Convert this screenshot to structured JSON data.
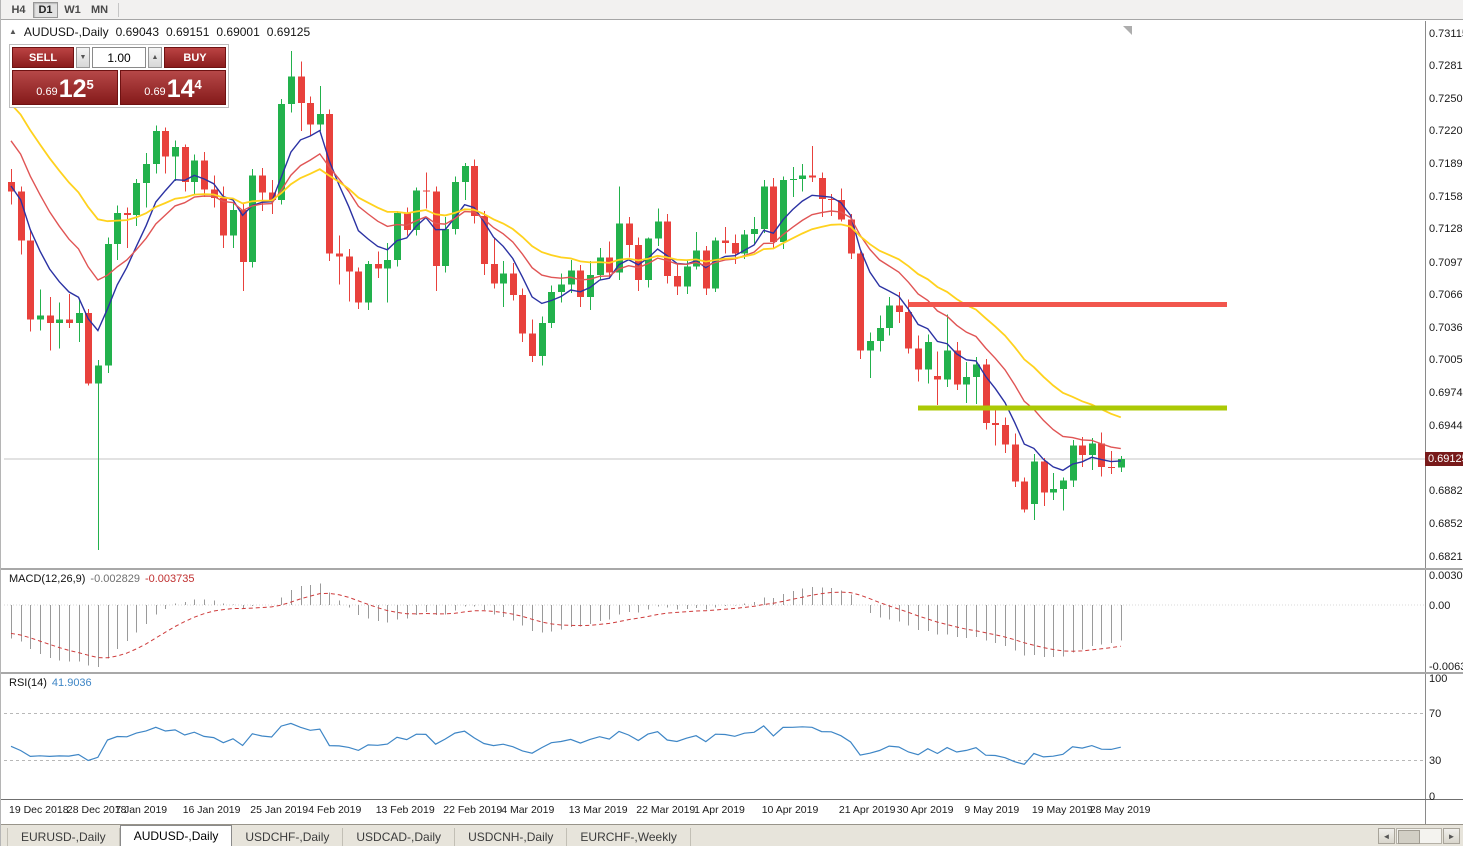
{
  "toolbar": {
    "timeframes": [
      {
        "label": "H4",
        "active": false
      },
      {
        "label": "D1",
        "active": true
      },
      {
        "label": "W1",
        "active": false
      },
      {
        "label": "MN",
        "active": false
      }
    ]
  },
  "icons": {
    "collapse_triangle": "▲",
    "spin_down": "▼",
    "spin_up": "▲",
    "tab_scroll_left": "◄",
    "tab_scroll_right": "►"
  },
  "info_line": {
    "symbol": "AUDUSD-,Daily",
    "open": "0.69043",
    "high": "0.69151",
    "low": "0.69001",
    "close": "0.69125"
  },
  "one_click": {
    "sell_label": "SELL",
    "buy_label": "BUY",
    "volume": "1.00",
    "bid": {
      "prefix": "0.69",
      "big": "12",
      "sup": "5"
    },
    "ask": {
      "prefix": "0.69",
      "big": "14",
      "sup": "4"
    }
  },
  "price_axis": {
    "ticks": [
      "0.73115",
      "0.72810",
      "0.72505",
      "0.72200",
      "0.71890",
      "0.71585",
      "0.71280",
      "0.70970",
      "0.70665",
      "0.70360",
      "0.70055",
      "0.69745",
      "0.69440",
      "0.68825",
      "0.68520",
      "0.68210"
    ],
    "current_price": "0.69125"
  },
  "time_axis": {
    "labels": [
      {
        "text": "19 Dec 2018",
        "i": 0
      },
      {
        "text": "28 Dec 2018",
        "i": 6
      },
      {
        "text": "7 Jan 2019",
        "i": 11
      },
      {
        "text": "16 Jan 2019",
        "i": 18
      },
      {
        "text": "25 Jan 2019",
        "i": 25
      },
      {
        "text": "4 Feb 2019",
        "i": 31
      },
      {
        "text": "13 Feb 2019",
        "i": 38
      },
      {
        "text": "22 Feb 2019",
        "i": 45
      },
      {
        "text": "4 Mar 2019",
        "i": 51
      },
      {
        "text": "13 Mar 2019",
        "i": 58
      },
      {
        "text": "22 Mar 2019",
        "i": 65
      },
      {
        "text": "1 Apr 2019",
        "i": 71
      },
      {
        "text": "10 Apr 2019",
        "i": 78
      },
      {
        "text": "21 Apr 2019",
        "i": 86
      },
      {
        "text": "30 Apr 2019",
        "i": 92
      },
      {
        "text": "9 May 2019",
        "i": 99
      },
      {
        "text": "19 May 2019",
        "i": 106
      },
      {
        "text": "28 May 2019",
        "i": 112
      }
    ]
  },
  "macd_panel": {
    "name": "MACD(12,26,9)",
    "main_value": "-0.002829",
    "signal_value": "-0.003735",
    "axis": [
      "0.003035",
      "0.00",
      "-0.006311"
    ]
  },
  "rsi_panel": {
    "name": "RSI(14)",
    "value": "41.9036",
    "axis": [
      "100",
      "70",
      "30",
      "0"
    ]
  },
  "tabs": [
    {
      "label": "EURUSD-,Daily",
      "active": false
    },
    {
      "label": "AUDUSD-,Daily",
      "active": true
    },
    {
      "label": "USDCHF-,Daily",
      "active": false
    },
    {
      "label": "USDCAD-,Daily",
      "active": false
    },
    {
      "label": "USDCNH-,Daily",
      "active": false
    },
    {
      "label": "EURCHF-,Weekly",
      "active": false
    }
  ],
  "chart_data": {
    "type": "candlestick",
    "symbol": "AUDUSD-",
    "period": "Daily",
    "price_range": {
      "max": 0.7323,
      "min": 0.6811
    },
    "colors": {
      "up": "#22B14C",
      "down": "#E8413C",
      "ma_fast": "#2B32A3",
      "ma_mid": "#E05555",
      "ma_slow": "#FFD21E",
      "macd_hist": "#9A9A9A",
      "macd_signal": "#CE3C3C",
      "rsi": "#3E86C6",
      "level_red": "#F2564D",
      "level_green": "#ABC905",
      "price_line": "#C4C4C4",
      "price_tag_bg": "#781A1A"
    },
    "moving_averages": [
      {
        "period": 7,
        "seed": 0.717,
        "color_key": "ma_fast",
        "width": 1.4
      },
      {
        "period": 14,
        "seed": 0.7218,
        "color_key": "ma_mid",
        "width": 1.4
      },
      {
        "period": 25,
        "seed": 0.7252,
        "color_key": "ma_slow",
        "width": 1.8
      }
    ],
    "hlines": [
      {
        "price": 0.7057,
        "color_key": "level_red",
        "width": 5,
        "from_i": 93,
        "to_i": 126
      },
      {
        "price": 0.696,
        "color_key": "level_green",
        "width": 5,
        "from_i": 94,
        "to_i": 126
      }
    ],
    "macd": {
      "fast": 12,
      "slow": 26,
      "signal": 9,
      "seed_fast": 0.719,
      "seed_slow": 0.7225,
      "seed_signal": -0.0028,
      "scale": {
        "max": 0.0035,
        "min": -0.0068
      }
    },
    "rsi": {
      "period": 14,
      "seed_gain": 0.0016,
      "seed_loss": 0.0022,
      "levels": [
        70,
        30
      ],
      "scale": {
        "max": 100,
        "min": 0
      }
    },
    "ohlc": [
      [
        0.7172,
        0.7184,
        0.7151,
        0.7163
      ],
      [
        0.7163,
        0.7168,
        0.7104,
        0.7117
      ],
      [
        0.7117,
        0.7128,
        0.7032,
        0.7043
      ],
      [
        0.7043,
        0.7071,
        0.7033,
        0.7047
      ],
      [
        0.7047,
        0.7064,
        0.7014,
        0.704
      ],
      [
        0.704,
        0.7059,
        0.7016,
        0.7043
      ],
      [
        0.7043,
        0.7067,
        0.7035,
        0.704
      ],
      [
        0.704,
        0.7062,
        0.7022,
        0.7049
      ],
      [
        0.7049,
        0.7053,
        0.6981,
        0.6983
      ],
      [
        0.6983,
        0.7005,
        0.6827,
        0.7
      ],
      [
        0.7,
        0.712,
        0.6993,
        0.7114
      ],
      [
        0.7114,
        0.715,
        0.7099,
        0.7143
      ],
      [
        0.7143,
        0.7148,
        0.711,
        0.7141
      ],
      [
        0.7141,
        0.7175,
        0.7131,
        0.7171
      ],
      [
        0.7171,
        0.7199,
        0.7148,
        0.7189
      ],
      [
        0.7189,
        0.7225,
        0.718,
        0.722
      ],
      [
        0.722,
        0.7223,
        0.718,
        0.7196
      ],
      [
        0.7196,
        0.7211,
        0.7173,
        0.7205
      ],
      [
        0.7205,
        0.7207,
        0.7163,
        0.7172
      ],
      [
        0.7172,
        0.7198,
        0.716,
        0.7192
      ],
      [
        0.7192,
        0.72,
        0.7158,
        0.7165
      ],
      [
        0.7165,
        0.7178,
        0.7148,
        0.7157
      ],
      [
        0.7157,
        0.7168,
        0.711,
        0.7122
      ],
      [
        0.7122,
        0.7152,
        0.711,
        0.7146
      ],
      [
        0.7146,
        0.7152,
        0.707,
        0.7097
      ],
      [
        0.7097,
        0.7184,
        0.7092,
        0.7178
      ],
      [
        0.7178,
        0.7185,
        0.7145,
        0.7162
      ],
      [
        0.7162,
        0.7174,
        0.7142,
        0.7155
      ],
      [
        0.7155,
        0.725,
        0.7151,
        0.7245
      ],
      [
        0.7245,
        0.7295,
        0.7237,
        0.7271
      ],
      [
        0.7271,
        0.7285,
        0.722,
        0.7246
      ],
      [
        0.7246,
        0.7252,
        0.7215,
        0.7226
      ],
      [
        0.7226,
        0.7262,
        0.722,
        0.7236
      ],
      [
        0.7236,
        0.724,
        0.7098,
        0.7105
      ],
      [
        0.7105,
        0.7122,
        0.7076,
        0.7102
      ],
      [
        0.7102,
        0.7109,
        0.706,
        0.7088
      ],
      [
        0.7088,
        0.7092,
        0.7053,
        0.7059
      ],
      [
        0.7059,
        0.7098,
        0.7052,
        0.7095
      ],
      [
        0.7095,
        0.7107,
        0.7082,
        0.7091
      ],
      [
        0.7091,
        0.7115,
        0.7059,
        0.7099
      ],
      [
        0.7099,
        0.7145,
        0.7093,
        0.7143
      ],
      [
        0.7143,
        0.7148,
        0.7122,
        0.7127
      ],
      [
        0.7127,
        0.7167,
        0.7122,
        0.7164
      ],
      [
        0.7164,
        0.7181,
        0.7147,
        0.7163
      ],
      [
        0.7163,
        0.7168,
        0.707,
        0.7093
      ],
      [
        0.7093,
        0.7139,
        0.7087,
        0.7128
      ],
      [
        0.7128,
        0.7177,
        0.7123,
        0.7172
      ],
      [
        0.7172,
        0.719,
        0.7155,
        0.7187
      ],
      [
        0.7187,
        0.7193,
        0.7133,
        0.714
      ],
      [
        0.714,
        0.7145,
        0.7085,
        0.7095
      ],
      [
        0.7095,
        0.712,
        0.7072,
        0.7077
      ],
      [
        0.7077,
        0.7098,
        0.7055,
        0.7086
      ],
      [
        0.7086,
        0.7096,
        0.7061,
        0.7066
      ],
      [
        0.7066,
        0.7072,
        0.7022,
        0.703
      ],
      [
        0.703,
        0.7043,
        0.7003,
        0.7009
      ],
      [
        0.7009,
        0.7046,
        0.7,
        0.704
      ],
      [
        0.704,
        0.7075,
        0.7035,
        0.7069
      ],
      [
        0.7069,
        0.7086,
        0.7059,
        0.7076
      ],
      [
        0.7076,
        0.7099,
        0.7068,
        0.7089
      ],
      [
        0.7089,
        0.7094,
        0.7055,
        0.7064
      ],
      [
        0.7064,
        0.7098,
        0.7052,
        0.7085
      ],
      [
        0.7085,
        0.711,
        0.708,
        0.7101
      ],
      [
        0.7101,
        0.7116,
        0.7082,
        0.7087
      ],
      [
        0.7087,
        0.7168,
        0.708,
        0.7133
      ],
      [
        0.7133,
        0.7139,
        0.7101,
        0.7113
      ],
      [
        0.7113,
        0.712,
        0.707,
        0.708
      ],
      [
        0.708,
        0.712,
        0.7073,
        0.7119
      ],
      [
        0.7119,
        0.7147,
        0.7112,
        0.7135
      ],
      [
        0.7135,
        0.7142,
        0.7077,
        0.7084
      ],
      [
        0.7084,
        0.7096,
        0.7066,
        0.7074
      ],
      [
        0.7074,
        0.7099,
        0.7067,
        0.7093
      ],
      [
        0.7093,
        0.7125,
        0.709,
        0.7108
      ],
      [
        0.7108,
        0.7112,
        0.7066,
        0.7072
      ],
      [
        0.7072,
        0.712,
        0.7069,
        0.7117
      ],
      [
        0.7117,
        0.713,
        0.7105,
        0.7115
      ],
      [
        0.7115,
        0.7123,
        0.7095,
        0.7105
      ],
      [
        0.7105,
        0.7127,
        0.71,
        0.7123
      ],
      [
        0.7123,
        0.7139,
        0.7113,
        0.7128
      ],
      [
        0.7128,
        0.7174,
        0.7124,
        0.7168
      ],
      [
        0.7168,
        0.7176,
        0.711,
        0.7116
      ],
      [
        0.7116,
        0.7177,
        0.7109,
        0.7174
      ],
      [
        0.7174,
        0.7186,
        0.7158,
        0.7175
      ],
      [
        0.7175,
        0.7189,
        0.7163,
        0.7178
      ],
      [
        0.7178,
        0.7206,
        0.7172,
        0.7176
      ],
      [
        0.7176,
        0.7181,
        0.7139,
        0.7156
      ],
      [
        0.7156,
        0.7161,
        0.714,
        0.7155
      ],
      [
        0.7155,
        0.7166,
        0.7135,
        0.7137
      ],
      [
        0.7137,
        0.7142,
        0.71,
        0.7105
      ],
      [
        0.7105,
        0.7107,
        0.7006,
        0.7014
      ],
      [
        0.7014,
        0.7031,
        0.6988,
        0.7023
      ],
      [
        0.7023,
        0.7047,
        0.7013,
        0.7035
      ],
      [
        0.7035,
        0.7064,
        0.7028,
        0.7056
      ],
      [
        0.7056,
        0.7069,
        0.704,
        0.705
      ],
      [
        0.705,
        0.7062,
        0.7011,
        0.7016
      ],
      [
        0.7016,
        0.7028,
        0.6985,
        0.6996
      ],
      [
        0.6996,
        0.7029,
        0.6983,
        0.7022
      ],
      [
        0.699,
        0.7013,
        0.6963,
        0.6987
      ],
      [
        0.6987,
        0.7048,
        0.698,
        0.7014
      ],
      [
        0.7014,
        0.7022,
        0.6977,
        0.6982
      ],
      [
        0.6982,
        0.7003,
        0.6965,
        0.6989
      ],
      [
        0.6989,
        0.7008,
        0.6964,
        0.7001
      ],
      [
        0.7001,
        0.7006,
        0.694,
        0.6946
      ],
      [
        0.6946,
        0.6958,
        0.6925,
        0.6944
      ],
      [
        0.6944,
        0.6951,
        0.6918,
        0.6926
      ],
      [
        0.6926,
        0.6936,
        0.6886,
        0.6891
      ],
      [
        0.6891,
        0.6895,
        0.6862,
        0.6865
      ],
      [
        0.687,
        0.6917,
        0.6855,
        0.691
      ],
      [
        0.691,
        0.6913,
        0.6868,
        0.6881
      ],
      [
        0.6881,
        0.6899,
        0.6874,
        0.6884
      ],
      [
        0.6884,
        0.6895,
        0.6864,
        0.6892
      ],
      [
        0.6892,
        0.693,
        0.6886,
        0.6925
      ],
      [
        0.6925,
        0.6933,
        0.6905,
        0.6916
      ],
      [
        0.6916,
        0.6932,
        0.6902,
        0.6927
      ],
      [
        0.6927,
        0.6937,
        0.6896,
        0.6905
      ],
      [
        0.6905,
        0.692,
        0.6898,
        0.6904
      ],
      [
        0.69043,
        0.69151,
        0.69001,
        0.69125
      ]
    ]
  }
}
